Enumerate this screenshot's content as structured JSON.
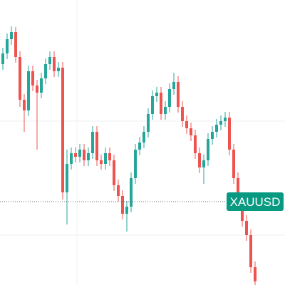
{
  "chart_data": {
    "type": "candlestick",
    "symbol": "XAUUSD",
    "up_color": "#26a69a",
    "down_color": "#ef5350",
    "label_color": "#089981",
    "ylim": [
      0,
      400
    ],
    "price_line": 117,
    "open": [
      310,
      325,
      345,
      355,
      320,
      260,
      245,
      300,
      280,
      270,
      290,
      310,
      320,
      300,
      305,
      130,
      170,
      185,
      180,
      190,
      175,
      185,
      215,
      175,
      170,
      185,
      175,
      140,
      125,
      100,
      110,
      150,
      190,
      200,
      215,
      240,
      265,
      270,
      240,
      250,
      275,
      285,
      250,
      230,
      220,
      210,
      185,
      165,
      175,
      205,
      215,
      225,
      230,
      235,
      190,
      150,
      120,
      90,
      70,
      25
    ],
    "high": [
      333,
      353,
      363,
      362,
      328,
      268,
      308,
      308,
      288,
      298,
      318,
      328,
      328,
      313,
      313,
      190,
      193,
      193,
      198,
      198,
      193,
      223,
      223,
      183,
      193,
      193,
      183,
      148,
      133,
      118,
      158,
      198,
      208,
      223,
      248,
      273,
      278,
      278,
      258,
      283,
      298,
      293,
      258,
      238,
      228,
      218,
      193,
      183,
      213,
      223,
      233,
      238,
      243,
      243,
      198,
      158,
      128,
      98,
      78,
      33
    ],
    "low": [
      302,
      317,
      337,
      312,
      250,
      215,
      237,
      272,
      190,
      262,
      282,
      302,
      292,
      292,
      120,
      85,
      162,
      172,
      172,
      167,
      167,
      177,
      167,
      162,
      162,
      167,
      132,
      117,
      92,
      75,
      102,
      142,
      182,
      192,
      207,
      232,
      257,
      232,
      232,
      242,
      267,
      242,
      222,
      212,
      202,
      177,
      157,
      142,
      167,
      197,
      207,
      217,
      222,
      182,
      142,
      112,
      82,
      62,
      17,
      0
    ],
    "close": [
      325,
      345,
      355,
      320,
      260,
      245,
      300,
      280,
      270,
      290,
      310,
      320,
      300,
      305,
      130,
      170,
      185,
      180,
      190,
      175,
      185,
      215,
      175,
      170,
      185,
      175,
      140,
      125,
      100,
      110,
      150,
      190,
      200,
      215,
      240,
      265,
      270,
      240,
      250,
      275,
      285,
      250,
      230,
      220,
      210,
      185,
      165,
      175,
      205,
      215,
      225,
      230,
      235,
      190,
      150,
      120,
      90,
      70,
      25,
      5
    ]
  }
}
